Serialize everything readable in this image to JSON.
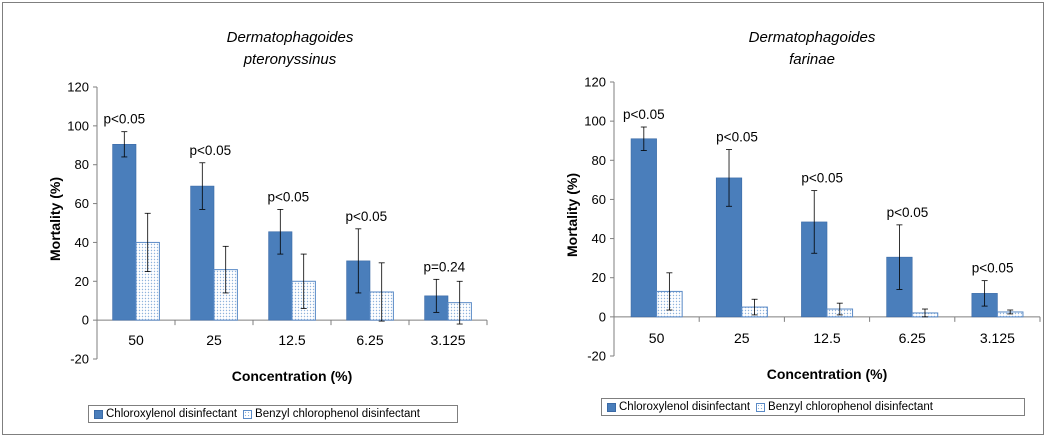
{
  "colors": {
    "chloroxylenol": "#4a7ebb",
    "benzyl_outline": "#5a8ac6",
    "benzyl_dots": "#8fb3dc"
  },
  "chart_data": [
    {
      "type": "bar",
      "title": "Dermatophagoides pteronyssinus",
      "title_lines": [
        "Dermatophagoides",
        "pteronyssinus"
      ],
      "xlabel": "Concentration (%)",
      "ylabel": "Mortality (%)",
      "ylim": [
        -20,
        120
      ],
      "yticks": [
        -20,
        0,
        20,
        40,
        60,
        80,
        100,
        120
      ],
      "categories": [
        "50",
        "25",
        "12.5",
        "6.25",
        "3.125"
      ],
      "series": [
        {
          "name": "Chloroxylenol disinfectant",
          "values": [
            90.5,
            69,
            45.5,
            30.5,
            12.5
          ],
          "errors": [
            6.5,
            12,
            11.5,
            16.5,
            8.5
          ]
        },
        {
          "name": "Benzyl chlorophenol disinfectant",
          "values": [
            40,
            26,
            20,
            14.5,
            9
          ],
          "errors": [
            15,
            12,
            14,
            15,
            11
          ]
        }
      ],
      "annotations": [
        "p<0.05",
        "p<0.05",
        "p<0.05",
        "p<0.05",
        "p=0.24"
      ],
      "legend_position": "bottom"
    },
    {
      "type": "bar",
      "title": "Dermatophagoides farinae",
      "title_lines": [
        "Dermatophagoides",
        "farinae"
      ],
      "xlabel": "Concentration (%)",
      "ylabel": "Mortality (%)",
      "ylim": [
        -20,
        120
      ],
      "yticks": [
        -20,
        0,
        20,
        40,
        60,
        80,
        100,
        120
      ],
      "categories": [
        "50",
        "25",
        "12.5",
        "6.25",
        "3.125"
      ],
      "series": [
        {
          "name": "Chloroxylenol disinfectant",
          "values": [
            91,
            71,
            48.5,
            30.5,
            12
          ],
          "errors": [
            6,
            14.5,
            16,
            16.5,
            6.5
          ]
        },
        {
          "name": "Benzyl chlorophenol disinfectant",
          "values": [
            13,
            5,
            4,
            2,
            2.5
          ],
          "errors": [
            9.5,
            4,
            3,
            2,
            1
          ]
        }
      ],
      "annotations": [
        "p<0.05",
        "p<0.05",
        "p<0.05",
        "p<0.05",
        "p<0.05"
      ],
      "legend_position": "bottom"
    }
  ]
}
